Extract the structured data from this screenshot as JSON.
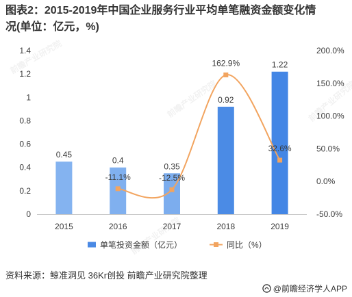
{
  "chart_data": {
    "type": "bar",
    "title_lines": [
      "图表2：2015-2019年中国企业服务行业平均单笔融资金额变化情",
      "况(单位：亿元，%)"
    ],
    "categories": [
      "2015",
      "2016",
      "2017",
      "2018",
      "2019"
    ],
    "series": [
      {
        "name": "单笔投资金额（亿元）",
        "type": "bar",
        "axis": "left",
        "values": [
          0.45,
          0.4,
          0.35,
          0.92,
          1.22
        ],
        "labels": [
          "0.45",
          "0.4",
          "0.35",
          "0.92",
          "1.22"
        ],
        "colors": [
          "#84B3F0",
          "#80B0EF",
          "#7CADEE",
          "#4B8BE5",
          "#4386E5"
        ],
        "legend_color": "#4A89E4"
      },
      {
        "name": "同比（%）",
        "type": "line",
        "axis": "right",
        "smooth": true,
        "values": [
          null,
          -11.1,
          -12.5,
          162.9,
          32.6
        ],
        "labels": [
          null,
          "-11.1%",
          "-12.5%",
          "162.9%",
          "32.6%"
        ],
        "color": "#F2A45F"
      }
    ],
    "y_left": {
      "lim": [
        0,
        1.4
      ],
      "ticks": [
        0,
        0.2,
        0.4,
        0.6,
        0.8,
        1,
        1.2,
        1.4
      ],
      "tick_labels": [
        "0",
        "0.2",
        "0.4",
        "0.6",
        "0.8",
        "1",
        "1.2",
        "1.4"
      ]
    },
    "y_right": {
      "lim": [
        -50,
        200
      ],
      "ticks": [
        -50,
        0,
        50,
        100,
        150,
        200
      ],
      "tick_labels": [
        "-50.0%",
        "0.0%",
        "50.0%",
        "100.0%",
        "150.0%",
        "200.0%"
      ]
    },
    "grid": false,
    "legend_position": "bottom"
  },
  "source": "资料来源：鲸准洞见 36Kr创投 前瞻产业研究院整理",
  "brand": {
    "text": "@前瞻经济学人APP",
    "icon": "qianzhan-logo-icon"
  },
  "watermark": "前瞻产业研究院",
  "colors": {
    "text": "#333333",
    "axis_line": "#C8C8C8",
    "logo": "#3A3A3A"
  }
}
